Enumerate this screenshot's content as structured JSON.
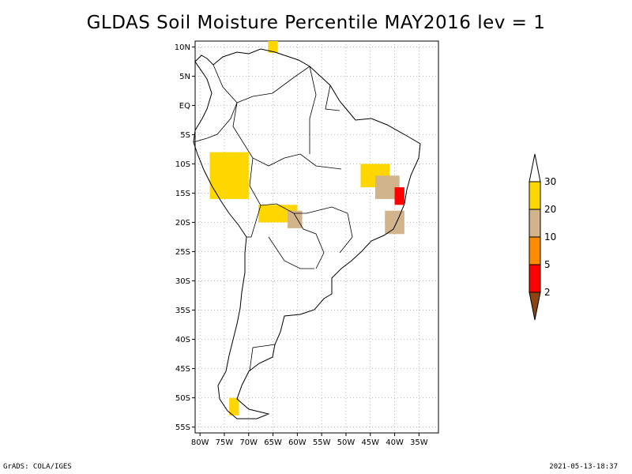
{
  "title": "GLDAS Soil Moisture Percentile MAY2016 lev = 1",
  "footer": {
    "left": "GrADS: COLA/IGES",
    "right": "2021-05-13-18:37"
  },
  "map": {
    "lat_ticks": [
      {
        "value": 10,
        "label": "10N"
      },
      {
        "value": 5,
        "label": "5N"
      },
      {
        "value": 0,
        "label": "EQ"
      },
      {
        "value": -5,
        "label": "5S"
      },
      {
        "value": -10,
        "label": "10S"
      },
      {
        "value": -15,
        "label": "15S"
      },
      {
        "value": -20,
        "label": "20S"
      },
      {
        "value": -25,
        "label": "25S"
      },
      {
        "value": -30,
        "label": "30S"
      },
      {
        "value": -35,
        "label": "35S"
      },
      {
        "value": -40,
        "label": "40S"
      },
      {
        "value": -45,
        "label": "45S"
      },
      {
        "value": -50,
        "label": "50S"
      },
      {
        "value": -55,
        "label": "55S"
      }
    ],
    "lon_ticks": [
      {
        "value": -80,
        "label": "80W"
      },
      {
        "value": -75,
        "label": "75W"
      },
      {
        "value": -70,
        "label": "70W"
      },
      {
        "value": -65,
        "label": "65W"
      },
      {
        "value": -60,
        "label": "60W"
      },
      {
        "value": -55,
        "label": "55W"
      },
      {
        "value": -50,
        "label": "50W"
      },
      {
        "value": -45,
        "label": "45W"
      },
      {
        "value": -40,
        "label": "40W"
      },
      {
        "value": -35,
        "label": "35W"
      }
    ],
    "extent": {
      "lon_min": -81,
      "lon_max": -31,
      "lat_min": -56,
      "lat_max": 11
    }
  },
  "legend": {
    "levels": [
      {
        "label": "2",
        "color": "#8b4513"
      },
      {
        "label": "5",
        "color": "#ff0000"
      },
      {
        "label": "10",
        "color": "#ff8c00"
      },
      {
        "label": "20",
        "color": "#d2b48c"
      },
      {
        "label": "30",
        "color": "#ffd700"
      }
    ],
    "under_color": "#8b4513",
    "over_color": "#ffffff"
  },
  "chart_data": {
    "type": "heatmap",
    "title": "GLDAS Soil Moisture Percentile MAY2016 lev = 1",
    "variable": "Soil Moisture Percentile",
    "colorbar_breaks": [
      2,
      5,
      10,
      20,
      30
    ],
    "regions": [
      {
        "lon": [
          -40,
          -38
        ],
        "lat": [
          -17,
          -14
        ],
        "percentile_class": "<5"
      },
      {
        "lon": [
          -44,
          -39
        ],
        "lat": [
          -16,
          -12
        ],
        "percentile_class": "10-20"
      },
      {
        "lon": [
          -47,
          -41
        ],
        "lat": [
          -14,
          -10
        ],
        "percentile_class": "20-30"
      },
      {
        "lon": [
          -42,
          -38
        ],
        "lat": [
          -22,
          -18
        ],
        "percentile_class": "10-20"
      },
      {
        "lon": [
          -68,
          -60
        ],
        "lat": [
          -20,
          -17
        ],
        "percentile_class": "20-30"
      },
      {
        "lon": [
          -62,
          -59
        ],
        "lat": [
          -21,
          -18
        ],
        "percentile_class": "10-20"
      },
      {
        "lon": [
          -78,
          -70
        ],
        "lat": [
          -16,
          -8
        ],
        "percentile_class": "20-30"
      },
      {
        "lon": [
          -74,
          -72
        ],
        "lat": [
          -53,
          -50
        ],
        "percentile_class": "20-30"
      },
      {
        "lon": [
          -66,
          -64
        ],
        "lat": [
          11,
          9
        ],
        "percentile_class": "20-30"
      }
    ]
  }
}
